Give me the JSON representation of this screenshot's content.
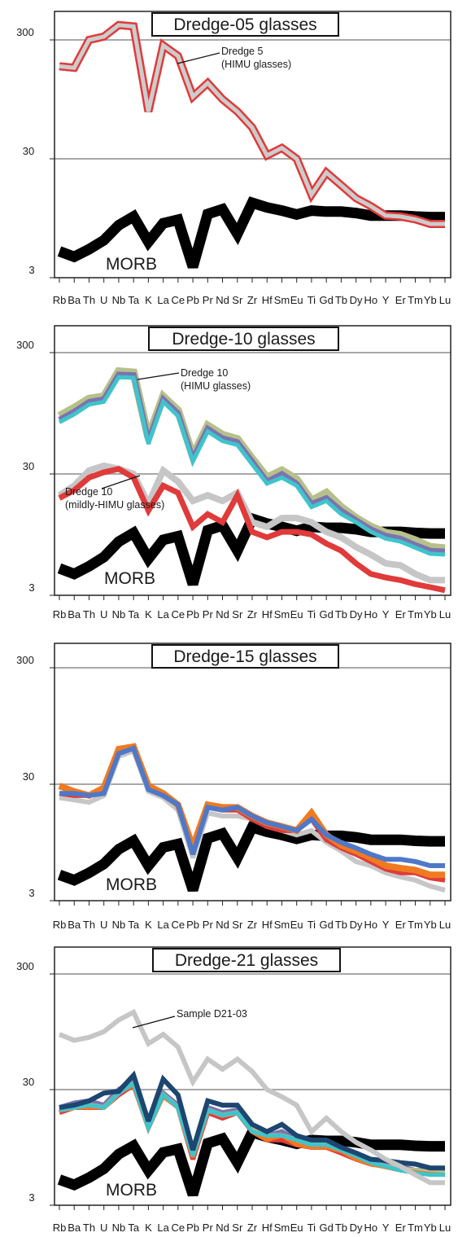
{
  "figure": {
    "colors": {
      "morb": "#000000",
      "himu_outline": "#e03a3a",
      "himu_inner": "#cccccc",
      "d10_olive": "#b7c08a",
      "d10_purple": "#7a74b0",
      "d10_cyan": "#3fc4cc",
      "d15_orange": "#f07a20",
      "d15_blue": "#4f78c8",
      "d21_navy": "#1d4670",
      "d21_gray": "#c6c6c6",
      "grid": "#a8a8a8"
    }
  },
  "chart_data": [
    {
      "type": "line",
      "title": "Dredge-05 glasses",
      "yscale": "log",
      "ylim": [
        3,
        600
      ],
      "yticks": [
        "3",
        "30",
        "300"
      ],
      "grid": true,
      "categories": [
        "Rb",
        "Ba",
        "Th",
        "U",
        "Nb",
        "Ta",
        "K",
        "La",
        "Ce",
        "Pb",
        "Pr",
        "Nd",
        "Sr",
        "Zr",
        "Hf",
        "Sm",
        "Eu",
        "Ti",
        "Gd",
        "Tb",
        "Dy",
        "Ho",
        "Y",
        "Er",
        "Tm",
        "Yb",
        "Lu"
      ],
      "xticklabels": [
        "Rb",
        "Ba",
        "Th",
        "U",
        "Nb",
        "Ta",
        "K",
        "La",
        "Ce",
        "Pb",
        "Pr",
        "Nd",
        "Sr",
        "Zr",
        "Hf",
        "Sm",
        "Eu",
        "Ti",
        "Gd",
        "Tb",
        "Dy",
        "Ho",
        "Y",
        "Er",
        "Tm",
        "Yb",
        "Lu"
      ],
      "annotations": [
        {
          "lines": [
            "Dredge 5",
            "(HIMU glasses)"
          ]
        }
      ],
      "series": [
        {
          "name": "MORB",
          "color": "#000000",
          "width": 13,
          "values": [
            5.0,
            4.5,
            5.2,
            6.2,
            8.3,
            9.8,
            6.0,
            8.6,
            9.2,
            3.7,
            10.3,
            11.3,
            7.0,
            12.8,
            11.7,
            11.0,
            10.2,
            11.0,
            10.8,
            10.8,
            10.5,
            10.0,
            10.0,
            10.0,
            9.8,
            9.7,
            9.7
          ]
        },
        {
          "name": "Dredge 5 (HIMU glasses)",
          "color": "#e03a3a",
          "inner": "#cccccc",
          "width": 10,
          "values": [
            180,
            175,
            300,
            320,
            400,
            390,
            75,
            270,
            220,
            100,
            130,
            95,
            75,
            55,
            32,
            37,
            30,
            15,
            23,
            18,
            14,
            12,
            10,
            9.8,
            9.3,
            8.5,
            8.5
          ]
        }
      ]
    },
    {
      "type": "line",
      "title": "Dredge-10 glasses",
      "yscale": "log",
      "ylim": [
        3,
        600
      ],
      "yticks": [
        "3",
        "30",
        "300"
      ],
      "grid": true,
      "categories": [
        "Rb",
        "Ba",
        "Th",
        "U",
        "Nb",
        "Ta",
        "K",
        "La",
        "Ce",
        "Pb",
        "Pr",
        "Nd",
        "Sr",
        "Zr",
        "Hf",
        "Sm",
        "Eu",
        "Ti",
        "Gd",
        "Tb",
        "Dy",
        "Ho",
        "Y",
        "Er",
        "Tm",
        "Yb",
        "Lu"
      ],
      "xticklabels": [
        "Rb",
        "Ba",
        "Th",
        "U",
        "Nb",
        "Ta",
        "K",
        "La",
        "Ce",
        "Pb",
        "Pr",
        "Nd",
        "Sr",
        "Zr",
        "Hf",
        "Sm",
        "Eu",
        "Ti",
        "Gd",
        "Tb",
        "Dy",
        "Ho",
        "Y",
        "Er",
        "Tm",
        "Yb",
        "Lu"
      ],
      "annotations": [
        {
          "lines": [
            "Dredge 10",
            "(HIMU glasses)"
          ]
        },
        {
          "lines": [
            "Dredge 10",
            "(mildly-HIMU glasses)"
          ]
        }
      ],
      "series": [
        {
          "name": "MORB",
          "color": "#000000",
          "width": 13,
          "values": [
            5.0,
            4.5,
            5.2,
            6.2,
            8.3,
            9.8,
            6.0,
            8.6,
            9.2,
            3.7,
            10.3,
            11.3,
            7.0,
            12.8,
            11.7,
            11.0,
            10.2,
            11.0,
            10.8,
            10.8,
            10.5,
            10.0,
            10.0,
            10.0,
            9.8,
            9.7,
            9.7
          ]
        },
        {
          "name": "",
          "color": "#c6c6c6",
          "width": 8,
          "values": [
            20,
            24,
            32,
            35,
            33,
            30,
            17,
            32,
            26,
            18,
            20,
            18,
            21,
            12,
            11,
            13,
            13,
            12,
            10,
            9.0,
            7.5,
            6.5,
            5.5,
            5.3,
            4.5,
            4.0,
            4.0
          ]
        },
        {
          "name": "",
          "color": "#e03a3a",
          "width": 7,
          "values": [
            19,
            22,
            28,
            31,
            33,
            28,
            15,
            24,
            21,
            11,
            14,
            12,
            20,
            10,
            9,
            10,
            10,
            9.5,
            8.0,
            7.0,
            5.5,
            4.5,
            4.2,
            4.0,
            3.7,
            3.5,
            3.3
          ]
        },
        {
          "name": "",
          "color": "#b7c08a",
          "width": 10,
          "values": [
            90,
            105,
            125,
            130,
            210,
            205,
            60,
            130,
            100,
            42,
            75,
            63,
            58,
            40,
            28,
            32,
            27,
            18,
            21,
            16,
            13,
            11,
            9.8,
            9.4,
            8.5,
            7.5,
            7.3
          ]
        },
        {
          "name": "",
          "color": "#7a74b0",
          "width": 7,
          "values": [
            84,
            98,
            118,
            124,
            198,
            196,
            56,
            124,
            95,
            40,
            71,
            59,
            55,
            38,
            26,
            30,
            25,
            17,
            19,
            15,
            12.5,
            10.5,
            9.3,
            8.8,
            7.8,
            7.0,
            6.9
          ]
        },
        {
          "name": "",
          "color": "#3fc4cc",
          "width": 5,
          "values": [
            80,
            93,
            112,
            118,
            188,
            186,
            53,
            118,
            90,
            38,
            67,
            56,
            52,
            36,
            25,
            28,
            24,
            16,
            18,
            14,
            12,
            10,
            8.8,
            8.3,
            7.4,
            6.6,
            6.5
          ]
        }
      ]
    },
    {
      "type": "line",
      "title": "Dredge-15 glasses",
      "yscale": "log",
      "ylim": [
        3,
        600
      ],
      "yticks": [
        "3",
        "30",
        "300"
      ],
      "grid": true,
      "categories": [
        "Rb",
        "Ba",
        "Th",
        "U",
        "Nb",
        "Ta",
        "K",
        "La",
        "Ce",
        "Pb",
        "Pr",
        "Nd",
        "Sr",
        "Zr",
        "Hf",
        "Sm",
        "Eu",
        "Ti",
        "Gd",
        "Tb",
        "Dy",
        "Ho",
        "Y",
        "Er",
        "Tm",
        "Yb",
        "Lu"
      ],
      "xticklabels": [
        "Rb",
        "Ba",
        "Th",
        "U",
        "Nb",
        "Ta",
        "K",
        "La",
        "Ce",
        "Pb",
        "Pr",
        "Nd",
        "Sr",
        "Zr",
        "Hf",
        "Sm",
        "Eu",
        "Ti",
        "Gd",
        "Tb",
        "Dy",
        "Ho",
        "Y",
        "Er",
        "Tm",
        "Yb",
        "Lu"
      ],
      "series": [
        {
          "name": "MORB",
          "color": "#000000",
          "width": 13,
          "values": [
            5.0,
            4.5,
            5.2,
            6.2,
            8.3,
            9.8,
            6.0,
            8.6,
            9.2,
            3.7,
            10.3,
            11.3,
            7.0,
            12.8,
            11.7,
            11.0,
            10.2,
            11.0,
            10.8,
            10.8,
            10.5,
            10.0,
            10.0,
            10.0,
            9.8,
            9.7,
            9.7
          ]
        },
        {
          "name": "",
          "color": "#c6c6c6",
          "width": 6,
          "values": [
            23,
            22,
            21,
            24,
            52,
            58,
            26,
            23,
            18,
            7.0,
            17,
            16,
            16,
            15,
            13,
            12,
            11,
            12,
            9.5,
            8.0,
            6.5,
            6.0,
            5.2,
            4.8,
            4.5,
            4.0,
            3.7
          ]
        },
        {
          "name": "",
          "color": "#e03a3a",
          "width": 6,
          "values": [
            25,
            24,
            24,
            26,
            56,
            62,
            28,
            24,
            20,
            8.0,
            19,
            18,
            18,
            15,
            13,
            12,
            12,
            15,
            10,
            8.5,
            7.5,
            6.5,
            5.6,
            5.2,
            5.2,
            4.7,
            4.5
          ]
        },
        {
          "name": "",
          "color": "#f07a20",
          "width": 8,
          "values": [
            29,
            26,
            24,
            28,
            60,
            63,
            29,
            25,
            20,
            8.7,
            20,
            19,
            19,
            16,
            14,
            13,
            12,
            17,
            11,
            9.0,
            8.0,
            7.0,
            6.0,
            5.7,
            5.5,
            5.0,
            5.0
          ]
        },
        {
          "name": "",
          "color": "#4f78c8",
          "width": 6,
          "values": [
            25,
            25,
            24,
            25,
            55,
            61,
            27,
            24,
            20,
            7.5,
            19,
            18,
            19,
            16,
            14,
            13,
            12,
            15,
            11,
            9.5,
            8.5,
            7.5,
            6.8,
            6.8,
            6.5,
            6.0,
            6.0
          ]
        }
      ]
    },
    {
      "type": "line",
      "title": "Dredge-21 glasses",
      "yscale": "log",
      "ylim": [
        3,
        600
      ],
      "yticks": [
        "3",
        "30",
        "300"
      ],
      "grid": true,
      "categories": [
        "Rb",
        "Ba",
        "Th",
        "U",
        "Nb",
        "Ta",
        "K",
        "La",
        "Ce",
        "Pb",
        "Pr",
        "Nd",
        "Sr",
        "Zr",
        "Hf",
        "Sm",
        "Eu",
        "Ti",
        "Gd",
        "Tb",
        "Dy",
        "Ho",
        "Y",
        "Er",
        "Tm",
        "Yb",
        "Lu"
      ],
      "xticklabels": [
        "Rb",
        "Ba",
        "Th",
        "U",
        "Nb",
        "Ta",
        "K",
        "La",
        "Ce",
        "Pb",
        "Pr",
        "Nd",
        "Sr",
        "Zr",
        "Hf",
        "Sm",
        "Eu",
        "Ti",
        "Gd",
        "Tb",
        "Dy",
        "Ho",
        "Y",
        "Er",
        "Tm",
        "Yb",
        "Lu"
      ],
      "annotations": [
        {
          "lines": [
            "Sample D21-03"
          ]
        }
      ],
      "series": [
        {
          "name": "MORB",
          "color": "#000000",
          "width": 13,
          "values": [
            5.0,
            4.5,
            5.2,
            6.2,
            8.3,
            9.8,
            6.0,
            8.6,
            9.2,
            3.7,
            10.3,
            11.3,
            7.0,
            12.8,
            11.7,
            11.0,
            10.2,
            11.0,
            10.8,
            10.8,
            10.5,
            10.0,
            10.0,
            10.0,
            9.8,
            9.7,
            9.7
          ]
        },
        {
          "name": "",
          "color": "#e03a3a",
          "width": 6,
          "values": [
            19,
            21,
            21,
            21,
            27,
            33,
            14,
            27,
            21,
            7.5,
            19,
            17,
            19,
            13,
            11,
            11,
            10,
            9.5,
            9.5,
            8.5,
            7.5,
            6.8,
            6.5,
            6.2,
            6.0,
            5.8,
            5.8
          ]
        },
        {
          "name": "",
          "color": "#7a74b0",
          "width": 6,
          "values": [
            21,
            23,
            24,
            22,
            30,
            36,
            15,
            28,
            22,
            8.3,
            21,
            19,
            20,
            14,
            12,
            13,
            11,
            10,
            10,
            9.0,
            8.0,
            7.2,
            6.7,
            6.5,
            6.0,
            6.0,
            6.0
          ]
        },
        {
          "name": "",
          "color": "#b7c08a",
          "width": 6,
          "values": [
            20,
            21,
            22,
            21,
            28,
            34,
            14,
            27,
            21,
            8.0,
            20,
            18,
            19,
            14,
            12,
            12,
            11,
            10,
            10,
            9.0,
            7.8,
            7.0,
            6.5,
            6.2,
            6.0,
            5.8,
            5.7
          ]
        },
        {
          "name": "",
          "color": "#f07a20",
          "width": 5,
          "values": [
            20,
            21,
            21,
            21,
            28,
            33,
            14,
            26,
            21,
            7.8,
            20,
            18,
            19,
            13,
            11,
            12,
            10,
            9.5,
            9.5,
            8.8,
            7.5,
            6.8,
            6.4,
            6.0,
            5.8,
            5.6,
            5.5
          ]
        },
        {
          "name": "",
          "color": "#3fc4cc",
          "width": 5,
          "values": [
            20,
            21,
            22,
            21,
            28,
            34,
            14,
            27,
            21,
            8.0,
            20,
            18,
            19,
            13,
            12,
            12,
            11,
            10,
            10,
            9.0,
            8.0,
            7.0,
            6.5,
            6.0,
            5.7,
            5.5,
            5.5
          ]
        },
        {
          "name": "",
          "color": "#1d4670",
          "width": 6,
          "values": [
            21,
            22,
            24,
            28,
            29,
            40,
            16,
            37,
            27,
            9.0,
            24,
            22,
            22,
            15,
            13,
            15,
            12,
            11,
            11,
            9.5,
            8.5,
            7.5,
            7.3,
            7.0,
            6.8,
            6.3,
            6.3
          ]
        },
        {
          "name": "Sample D21-03",
          "color": "#c6c6c6",
          "width": 6,
          "values": [
            90,
            80,
            85,
            95,
            120,
            140,
            75,
            90,
            70,
            35,
            55,
            45,
            55,
            43,
            30,
            26,
            22,
            13,
            17,
            13,
            10.5,
            9.0,
            7.5,
            6.5,
            5.5,
            4.7,
            4.7
          ]
        }
      ]
    }
  ]
}
